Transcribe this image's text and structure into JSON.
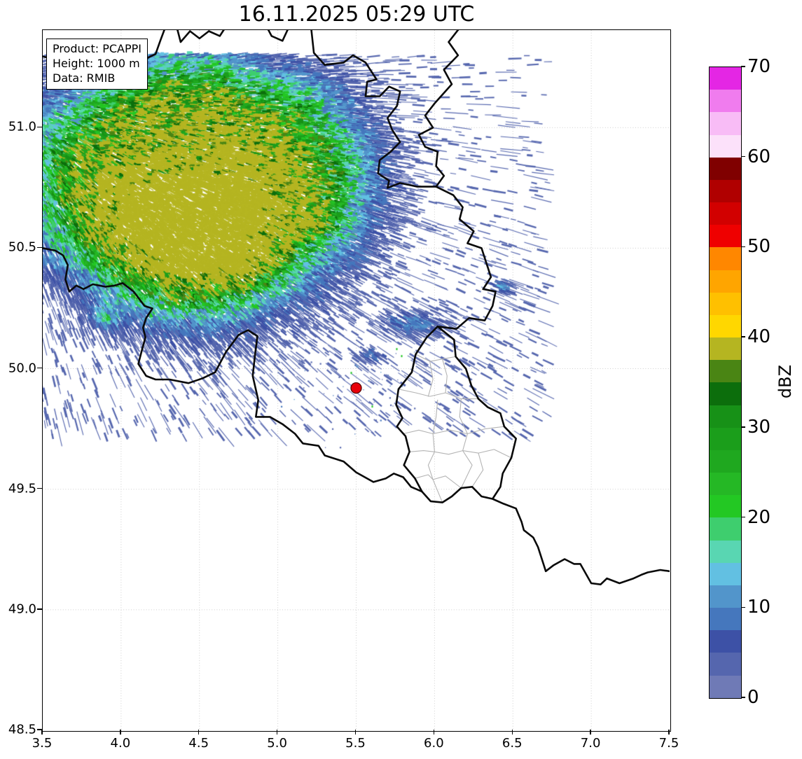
{
  "title": "16.11.2025 05:29 UTC",
  "info_box": {
    "lines": [
      "Product: PCAPPI",
      "Height: 1000 m",
      "Data: RMIB"
    ]
  },
  "axes": {
    "xlim": [
      3.5,
      7.5
    ],
    "ylim": [
      48.5,
      51.407
    ],
    "x_tick_values": [
      3.5,
      4.0,
      4.5,
      5.0,
      5.5,
      6.0,
      6.5,
      7.0,
      7.5
    ],
    "x_tick_labels": [
      "3.5",
      "4.0",
      "4.5",
      "5.0",
      "5.5",
      "6.0",
      "6.5",
      "7.0",
      "7.5"
    ],
    "y_tick_values": [
      48.5,
      49.0,
      49.5,
      50.0,
      50.5,
      51.0
    ],
    "y_tick_labels": [
      "48.5",
      "49.0",
      "49.5",
      "50.0",
      "50.5",
      "51.0"
    ],
    "grid": "dotted light-gray graticule every 0.5 degree"
  },
  "colorbar": {
    "label": "dBZ",
    "min": 0,
    "max": 70,
    "tick_values": [
      0,
      10,
      20,
      30,
      40,
      50,
      60,
      70
    ],
    "tick_labels": [
      "0",
      "10",
      "20",
      "30",
      "40",
      "50",
      "60",
      "70"
    ],
    "band_step_dbz": 2.5,
    "band_colors_bottom_to_top": [
      "#6f7ab6",
      "#5566ae",
      "#3d51a6",
      "#4577bd",
      "#5295cb",
      "#62c0e2",
      "#59d6b2",
      "#3ece6e",
      "#23c823",
      "#25b825",
      "#1fa81f",
      "#1b9e1b",
      "#179117",
      "#0c6e0c",
      "#4a8514",
      "#b5b521",
      "#ffd700",
      "#ffc000",
      "#ffa500",
      "#ff8700",
      "#ef0000",
      "#d20000",
      "#b00000",
      "#800000",
      "#fce1fa",
      "#f8bcf6",
      "#f07cee",
      "#e426e4"
    ]
  },
  "map_style": {
    "country_border_color": "#0a0a0a",
    "canton_border_color": "#b4b4b4",
    "grid_color": "#cfcfcf",
    "radar_marker_fill": "#e80009",
    "radar_marker_edge": "#550000"
  },
  "chart_data": {
    "type": "heatmap",
    "title": "16.11.2025 05:29 UTC",
    "product": "PCAPPI",
    "height": "1000 m",
    "data_source": "RMIB",
    "value_unit": "dBZ",
    "x": {
      "ticks": [
        3.5,
        4.0,
        4.5,
        5.0,
        5.5,
        6.0,
        6.5,
        7.0,
        7.5
      ],
      "range": [
        3.5,
        7.5
      ]
    },
    "y": {
      "ticks": [
        48.5,
        49.0,
        49.5,
        50.0,
        50.5,
        51.0
      ],
      "range": [
        48.5,
        51.41
      ]
    },
    "colorbar": {
      "label": "dBZ",
      "range": [
        0,
        70
      ],
      "tick_step": 10,
      "band_step": 2.5
    },
    "radar_site_marker": {
      "lon": 5.5,
      "lat": 49.92,
      "marker": "red-filled-circle"
    },
    "precipitation": {
      "main_echo": {
        "lon_range": [
          3.5,
          5.55
        ],
        "lat_range": [
          50.32,
          51.28
        ],
        "typical_dbz": [
          5,
          25
        ],
        "max_dbz_approx": 35,
        "description": "large stratiform precipitation area over NW of map with streaky radial texture; blue edges, green cores"
      },
      "minor_echoes": [
        {
          "lon": 4.95,
          "lat": 50.42,
          "dbz": 12
        },
        {
          "lon": 5.22,
          "lat": 50.58,
          "dbz": 11
        },
        {
          "lon": 3.9,
          "lat": 50.22,
          "dbz": 13
        },
        {
          "lon": 5.85,
          "lat": 50.08,
          "dbz": 10
        },
        {
          "lon": 6.44,
          "lat": 50.24,
          "dbz": 12
        },
        {
          "lon": 5.6,
          "lat": 49.96,
          "dbz": 8
        },
        {
          "lon": 5.55,
          "lat": 49.9,
          "dbz": 4,
          "description": "ground-clutter speckles around radar site"
        }
      ]
    },
    "map_layers": [
      "national borders of Belgium, Netherlands, Germany, France, Luxembourg in thick black",
      "Luxembourg canton boundaries in thin gray"
    ],
    "legend_position": "right colorbar"
  }
}
